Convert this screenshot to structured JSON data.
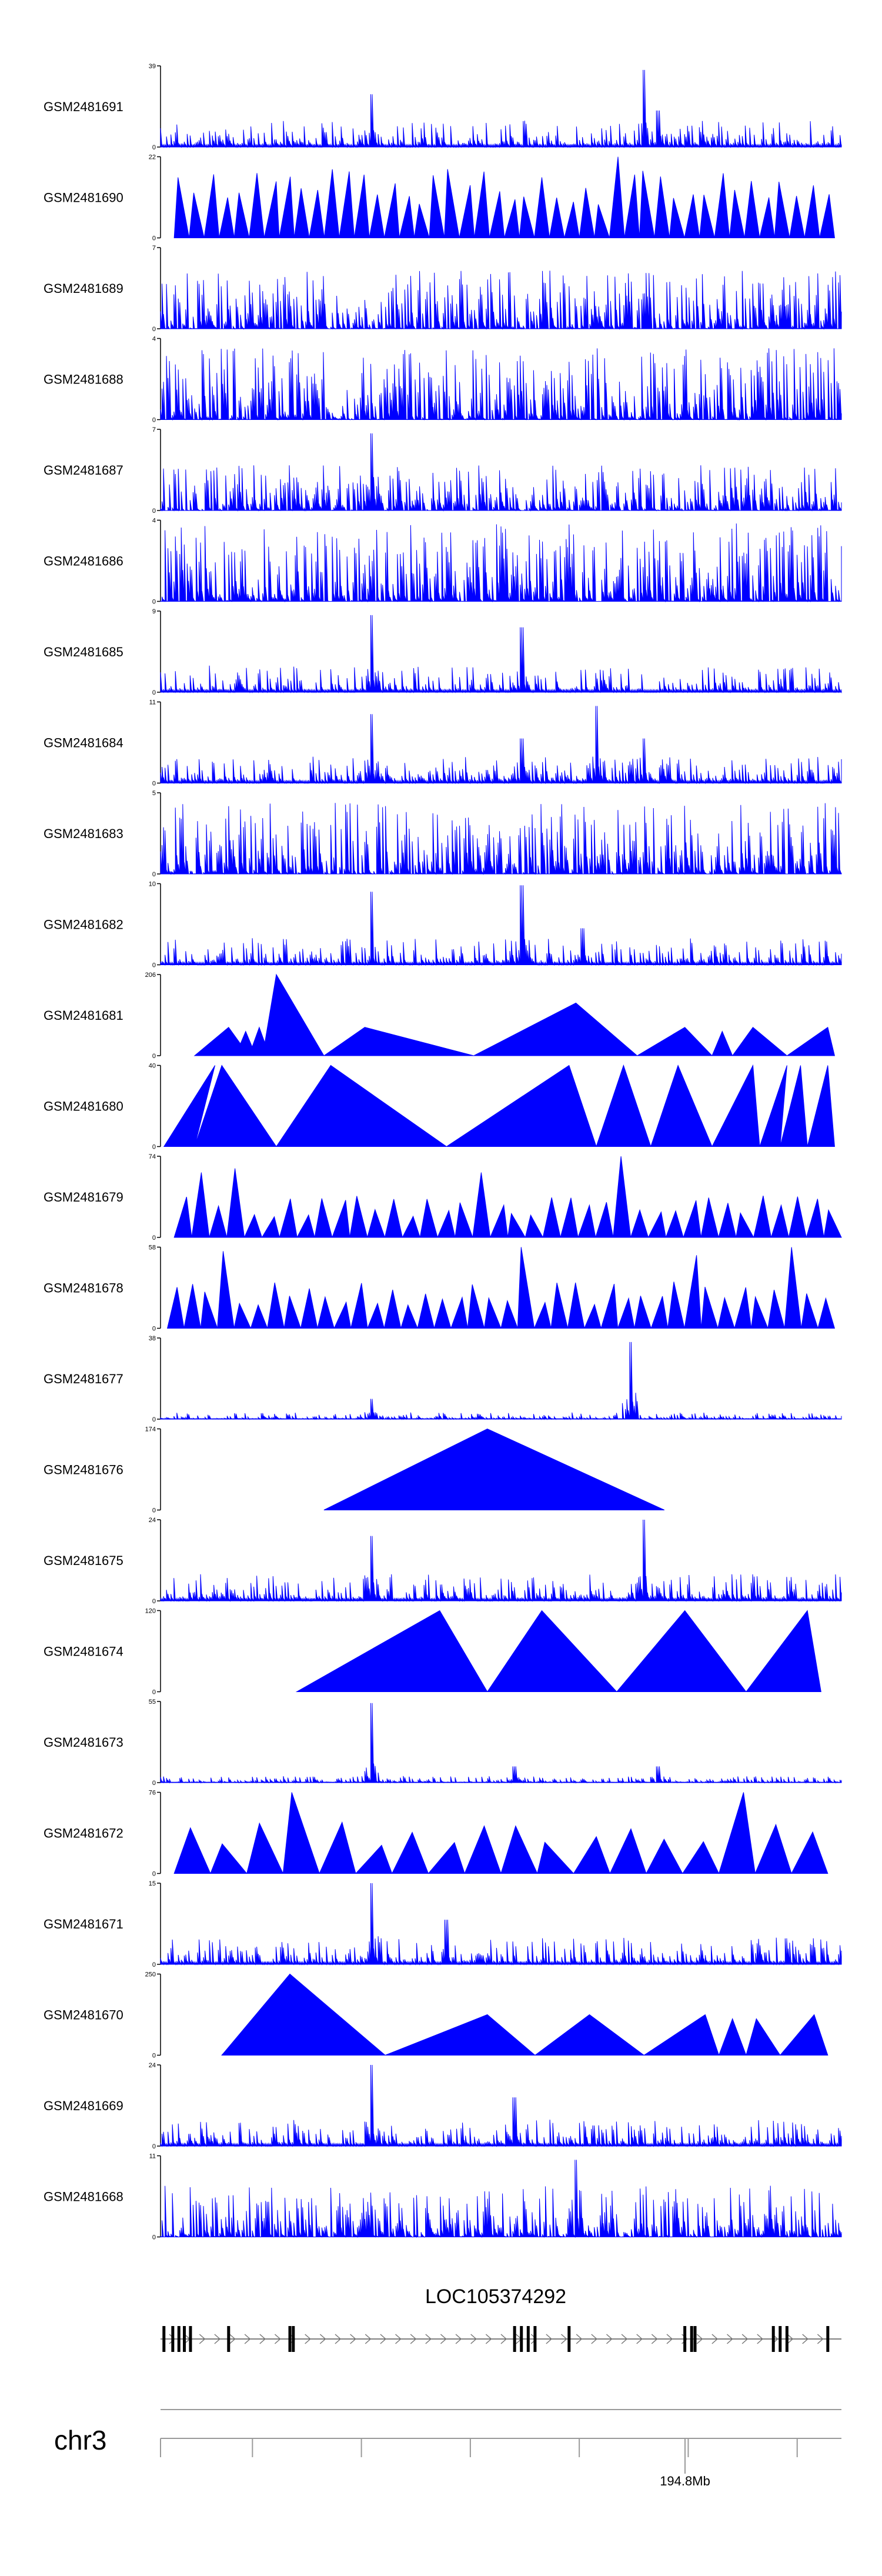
{
  "chart_data": {
    "type": "area",
    "title": "",
    "xlabel": "",
    "ylabel": "",
    "series_color": "#0000ff",
    "tracks": [
      {
        "name": "GSM2481691",
        "ymax": "39",
        "ymin": "0",
        "pattern": "noise",
        "seed": 11,
        "peaks": [
          [
            0.31,
            0.65
          ],
          [
            0.71,
            0.95
          ],
          [
            0.73,
            0.45
          ]
        ]
      },
      {
        "name": "GSM2481690",
        "ymax": "22",
        "ymin": "0",
        "pattern": "triangles",
        "seed": 12,
        "tri": [
          0.02,
          0.99,
          44,
          0.75
        ],
        "tall": [
          [
            0.68,
            1.0
          ]
        ]
      },
      {
        "name": "GSM2481689",
        "ymax": "7",
        "ymin": "0",
        "pattern": "dense",
        "seed": 13,
        "level": 0.45
      },
      {
        "name": "GSM2481688",
        "ymax": "4",
        "ymin": "0",
        "pattern": "dense",
        "seed": 14,
        "level": 0.55
      },
      {
        "name": "GSM2481687",
        "ymax": "7",
        "ymin": "0",
        "pattern": "dense",
        "seed": 15,
        "level": 0.35,
        "peaks": [
          [
            0.31,
            0.95
          ]
        ]
      },
      {
        "name": "GSM2481686",
        "ymax": "4",
        "ymin": "0",
        "pattern": "dense",
        "seed": 16,
        "level": 0.6
      },
      {
        "name": "GSM2481685",
        "ymax": "9",
        "ymin": "0",
        "pattern": "noise",
        "seed": 17,
        "peaks": [
          [
            0.31,
            0.95
          ],
          [
            0.53,
            0.8
          ]
        ]
      },
      {
        "name": "GSM2481684",
        "ymax": "11",
        "ymin": "0",
        "pattern": "noise",
        "seed": 18,
        "peaks": [
          [
            0.31,
            0.85
          ],
          [
            0.64,
            0.95
          ],
          [
            0.71,
            0.55
          ],
          [
            0.53,
            0.55
          ]
        ]
      },
      {
        "name": "GSM2481683",
        "ymax": "5",
        "ymin": "0",
        "pattern": "dense",
        "seed": 19,
        "level": 0.55
      },
      {
        "name": "GSM2481682",
        "ymax": "10",
        "ymin": "0",
        "pattern": "noise",
        "seed": 20,
        "peaks": [
          [
            0.31,
            0.9
          ],
          [
            0.53,
            0.98
          ],
          [
            0.62,
            0.45
          ]
        ]
      },
      {
        "name": "GSM2481681",
        "ymax": "206",
        "ymin": "0",
        "pattern": "shapes",
        "seed": 21,
        "shapes": [
          [
            0.05,
            0.1,
            0.13,
            0.35
          ],
          [
            0.11,
            0.125,
            0.14,
            0.3
          ],
          [
            0.13,
            0.145,
            0.16,
            0.35
          ],
          [
            0.15,
            0.17,
            0.24,
            1.0
          ],
          [
            0.24,
            0.3,
            0.46,
            0.35
          ],
          [
            0.46,
            0.61,
            0.7,
            0.65
          ],
          [
            0.7,
            0.77,
            0.81,
            0.35
          ],
          [
            0.81,
            0.825,
            0.84,
            0.3
          ],
          [
            0.84,
            0.87,
            0.92,
            0.35
          ],
          [
            0.92,
            0.98,
            0.99,
            0.35
          ]
        ]
      },
      {
        "name": "GSM2481680",
        "ymax": "40",
        "ymin": "0",
        "pattern": "shapes",
        "seed": 22,
        "shapes": [
          [
            0.005,
            0.08,
            0.05,
            1.0
          ],
          [
            0.05,
            0.09,
            0.17,
            1.0
          ],
          [
            0.17,
            0.25,
            0.42,
            1.0
          ],
          [
            0.42,
            0.6,
            0.64,
            1.0
          ],
          [
            0.64,
            0.68,
            0.72,
            1.0
          ],
          [
            0.72,
            0.76,
            0.81,
            1.0
          ],
          [
            0.81,
            0.87,
            0.88,
            1.0
          ],
          [
            0.88,
            0.92,
            0.91,
            1.0
          ],
          [
            0.91,
            0.94,
            0.95,
            1.0
          ],
          [
            0.95,
            0.98,
            0.99,
            1.0
          ]
        ]
      },
      {
        "name": "GSM2481679",
        "ymax": "74",
        "ymin": "0",
        "pattern": "triangles",
        "seed": 23,
        "tri": [
          0.02,
          1.0,
          38,
          0.45
        ],
        "tall": [
          [
            0.06,
            0.8
          ],
          [
            0.1,
            0.85
          ],
          [
            0.47,
            0.8
          ],
          [
            0.68,
            1.0
          ]
        ]
      },
      {
        "name": "GSM2481678",
        "ymax": "58",
        "ymin": "0",
        "pattern": "triangles",
        "seed": 24,
        "tri": [
          0.01,
          0.99,
          40,
          0.5
        ],
        "tall": [
          [
            0.09,
            0.95
          ],
          [
            0.54,
            1.0
          ],
          [
            0.78,
            0.9
          ],
          [
            0.93,
            1.0
          ]
        ]
      },
      {
        "name": "GSM2481677",
        "ymax": "38",
        "ymin": "0",
        "pattern": "noise",
        "seed": 25,
        "scale": 0.25,
        "peaks": [
          [
            0.31,
            0.25
          ],
          [
            0.69,
            0.95
          ]
        ]
      },
      {
        "name": "GSM2481676",
        "ymax": "174",
        "ymin": "0",
        "pattern": "shapes",
        "seed": 26,
        "shapes": [
          [
            0.24,
            0.48,
            0.74,
            1.0
          ]
        ]
      },
      {
        "name": "GSM2481675",
        "ymax": "24",
        "ymin": "0",
        "pattern": "noise",
        "seed": 27,
        "peaks": [
          [
            0.31,
            0.8
          ],
          [
            0.71,
            1.0
          ]
        ]
      },
      {
        "name": "GSM2481674",
        "ymax": "120",
        "ymin": "0",
        "pattern": "shapes",
        "seed": 28,
        "shapes": [
          [
            0.2,
            0.41,
            0.48,
            1.0
          ],
          [
            0.48,
            0.56,
            0.67,
            1.0
          ],
          [
            0.67,
            0.77,
            0.86,
            1.0
          ],
          [
            0.86,
            0.95,
            0.97,
            1.0
          ]
        ]
      },
      {
        "name": "GSM2481673",
        "ymax": "55",
        "ymin": "0",
        "pattern": "noise",
        "seed": 29,
        "scale": 0.25,
        "peaks": [
          [
            0.31,
            0.98
          ],
          [
            0.52,
            0.2
          ],
          [
            0.73,
            0.2
          ]
        ]
      },
      {
        "name": "GSM2481672",
        "ymax": "76",
        "ymin": "0",
        "pattern": "triangles",
        "seed": 30,
        "tri": [
          0.02,
          0.98,
          18,
          0.55
        ],
        "tall": [
          [
            0.19,
            1.0
          ],
          [
            0.82,
            1.0
          ]
        ]
      },
      {
        "name": "GSM2481671",
        "ymax": "15",
        "ymin": "0",
        "pattern": "noise",
        "seed": 31,
        "peaks": [
          [
            0.31,
            1.0
          ],
          [
            0.42,
            0.55
          ]
        ]
      },
      {
        "name": "GSM2481670",
        "ymax": "250",
        "ymin": "0",
        "pattern": "shapes",
        "seed": 32,
        "shapes": [
          [
            0.09,
            0.19,
            0.33,
            1.0
          ],
          [
            0.33,
            0.48,
            0.55,
            0.5
          ],
          [
            0.55,
            0.63,
            0.71,
            0.5
          ],
          [
            0.71,
            0.8,
            0.82,
            0.5
          ],
          [
            0.82,
            0.84,
            0.86,
            0.45
          ],
          [
            0.86,
            0.875,
            0.91,
            0.45
          ],
          [
            0.91,
            0.96,
            0.98,
            0.5
          ]
        ]
      },
      {
        "name": "GSM2481669",
        "ymax": "24",
        "ymin": "0",
        "pattern": "noise",
        "seed": 33,
        "peaks": [
          [
            0.31,
            1.0
          ],
          [
            0.52,
            0.6
          ]
        ]
      },
      {
        "name": "GSM2481668",
        "ymax": "11",
        "ymin": "0",
        "pattern": "dense",
        "seed": 34,
        "level": 0.4,
        "peaks": [
          [
            0.61,
            0.95
          ]
        ]
      }
    ]
  },
  "gene": {
    "name": "LOC105374292",
    "exons": [
      0.005,
      0.018,
      0.027,
      0.035,
      0.044,
      0.1,
      0.19,
      0.195,
      0.52,
      0.53,
      0.54,
      0.55,
      0.6,
      0.77,
      0.78,
      0.785,
      0.9,
      0.91,
      0.92,
      0.98
    ],
    "strand": "+"
  },
  "chromosome": {
    "name": "chr3",
    "position_label": "194.8Mb"
  }
}
